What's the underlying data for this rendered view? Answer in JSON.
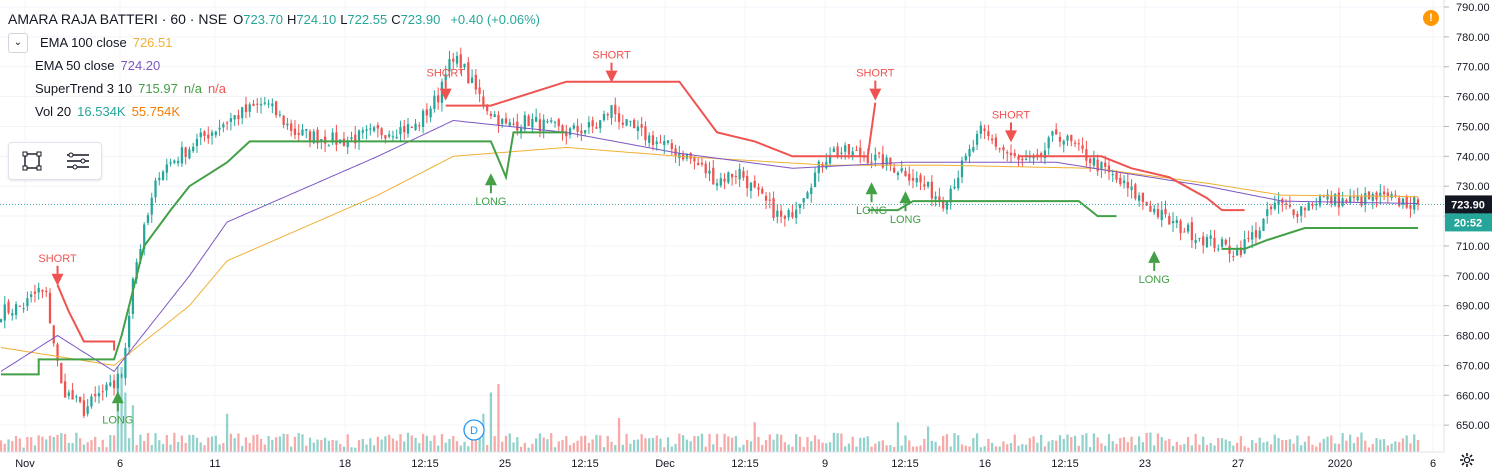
{
  "header": {
    "symbol": "AMARA RAJA BATTERI · 60 · NSE",
    "ohlc": [
      {
        "label": "O",
        "value": "723.70"
      },
      {
        "label": "H",
        "value": "724.10"
      },
      {
        "label": "L",
        "value": "722.55"
      },
      {
        "label": "C",
        "value": "723.90"
      }
    ],
    "change": "+0.40 (+0.06%)"
  },
  "indicators": [
    {
      "name": "EMA 100 close",
      "values": [
        "726.51"
      ],
      "colors": [
        "#f0b034"
      ]
    },
    {
      "name": "EMA 50 close",
      "values": [
        "724.20"
      ],
      "colors": [
        "#7e57c2"
      ]
    },
    {
      "name": "SuperTrend 3 10",
      "values": [
        "715.97",
        "n/a",
        "n/a"
      ],
      "colors": [
        "#43a047",
        "#43a047",
        "#ef5350"
      ]
    },
    {
      "name": "Vol 20",
      "values": [
        "16.534K",
        "55.754K"
      ],
      "colors": [
        "#26a69a",
        "#f57c00"
      ]
    }
  ],
  "colors": {
    "up": "#26a69a",
    "down": "#ef5350",
    "ema100": "#f0b034",
    "ema50": "#7e57c2",
    "st_long": "#43a047",
    "st_short": "#ef5350",
    "price_tag": "#131722",
    "time_tag": "#26a69a"
  },
  "price_tag": {
    "value": "723.90",
    "countdown": "20:52"
  },
  "event_marker": "D",
  "icons": {
    "alert": "exclamation-alert-icon",
    "settings": "gear-icon",
    "collapse": "chevron-down-icon"
  },
  "chart_data": {
    "type": "candlestick",
    "title": "AMARA RAJA BATTERI · 60 · NSE",
    "y_axis": {
      "min": 640,
      "max": 790,
      "ticks": [
        "650.00",
        "660.00",
        "670.00",
        "680.00",
        "690.00",
        "700.00",
        "710.00",
        "720.00",
        "730.00",
        "740.00",
        "750.00",
        "760.00",
        "770.00",
        "780.00",
        "790.00"
      ]
    },
    "x_axis": {
      "ticks": [
        "Nov",
        "6",
        "11",
        "18",
        "12:15",
        "25",
        "12:15",
        "Dec",
        "12:15",
        "9",
        "12:15",
        "16",
        "12:15",
        "23",
        "27",
        "2020",
        "6"
      ]
    },
    "price_key_points": {
      "x": [
        0,
        6,
        10,
        12,
        16,
        18,
        22,
        26,
        30,
        31,
        32,
        35,
        42,
        52,
        60,
        70,
        78,
        90,
        100,
        110,
        116,
        118,
        122,
        124,
        128,
        130,
        134,
        140,
        150,
        158,
        162,
        166,
        174,
        182,
        190,
        196,
        200,
        208,
        220,
        230,
        240,
        250,
        260,
        270,
        275,
        280,
        290,
        300,
        310,
        320,
        328,
        334,
        338,
        344,
        350,
        356,
        366,
        376
      ],
      "close": [
        688,
        690,
        695,
        693,
        663,
        660,
        655,
        660,
        663,
        668,
        665,
        700,
        735,
        745,
        752,
        758,
        748,
        745,
        748,
        750,
        760,
        770,
        772,
        766,
        758,
        755,
        750,
        752,
        748,
        750,
        756,
        750,
        745,
        740,
        732,
        735,
        728,
        718,
        742,
        740,
        735,
        725,
        748,
        738,
        738,
        748,
        738,
        728,
        718,
        712,
        708,
        716,
        724,
        722,
        726,
        725,
        726,
        723.9
      ]
    },
    "ema100": {
      "x": [
        0,
        30,
        50,
        60,
        100,
        120,
        150,
        180,
        220,
        250,
        290,
        320,
        340,
        376
      ],
      "y": [
        676,
        670,
        690,
        705,
        727,
        740,
        743,
        740,
        737,
        737,
        736,
        731,
        727,
        726.5
      ]
    },
    "ema50": {
      "x": [
        0,
        15,
        30,
        50,
        60,
        100,
        120,
        150,
        180,
        210,
        240,
        280,
        320,
        340,
        376
      ],
      "y": [
        668,
        680,
        668,
        700,
        718,
        740,
        752,
        748,
        741,
        736,
        738,
        738,
        730,
        725,
        724.2
      ]
    },
    "supertrend": [
      {
        "dir": "short",
        "x": [
          15,
          18,
          22,
          30,
          30
        ],
        "y": [
          697,
          688,
          678,
          678,
          675
        ]
      },
      {
        "dir": "long",
        "x": [
          0,
          10,
          10,
          30,
          32,
          35,
          38,
          45,
          50,
          55,
          60,
          66,
          80,
          90,
          98,
          118,
          130,
          132,
          134,
          136,
          144,
          150
        ],
        "y": [
          667,
          667,
          672,
          672,
          680,
          695,
          710,
          722,
          730,
          734,
          738,
          745,
          745,
          745,
          745,
          745,
          745,
          739,
          733,
          748,
          748,
          748
        ]
      },
      {
        "dir": "short",
        "x": [
          118,
          130,
          150,
          158,
          165,
          170,
          180,
          190,
          200,
          210,
          222,
          227,
          230,
          232
        ],
        "y": [
          757,
          757,
          765,
          765,
          765,
          765,
          765,
          748,
          745,
          740,
          740,
          740,
          740,
          758
        ]
      },
      {
        "dir": "long",
        "x": [
          230,
          232,
          238,
          242,
          250,
          260,
          276,
          286,
          291,
          296
        ],
        "y": [
          722,
          722,
          722,
          725,
          725,
          725,
          725,
          725,
          720,
          720
        ]
      },
      {
        "dir": "short",
        "x": [
          270,
          280,
          292,
          300,
          310,
          320,
          324,
          330
        ],
        "y": [
          740,
          740,
          740,
          736,
          733,
          726,
          722,
          722
        ]
      },
      {
        "dir": "long",
        "x": [
          324,
          330,
          336,
          346,
          360,
          376
        ],
        "y": [
          709,
          709,
          712,
          716,
          716,
          716
        ]
      }
    ],
    "signals": [
      {
        "type": "SHORT",
        "x": 15,
        "price": 698
      },
      {
        "type": "LONG",
        "x": 31,
        "price": 660
      },
      {
        "type": "SHORT",
        "x": 118,
        "price": 760
      },
      {
        "type": "LONG",
        "x": 130,
        "price": 733
      },
      {
        "type": "SHORT",
        "x": 162,
        "price": 766
      },
      {
        "type": "SHORT",
        "x": 232,
        "price": 760
      },
      {
        "type": "LONG",
        "x": 231,
        "price": 730
      },
      {
        "type": "LONG",
        "x": 240,
        "price": 727
      },
      {
        "type": "SHORT",
        "x": 268,
        "price": 746
      },
      {
        "type": "LONG",
        "x": 306,
        "price": 707
      }
    ],
    "volume_spikes": [
      {
        "x": 31,
        "rel": 0.85,
        "dir": "up"
      },
      {
        "x": 32,
        "rel": 1.0,
        "dir": "up"
      },
      {
        "x": 33,
        "rel": 0.7,
        "dir": "up"
      },
      {
        "x": 35,
        "rel": 0.55,
        "dir": "up"
      },
      {
        "x": 60,
        "rel": 0.45,
        "dir": "up"
      },
      {
        "x": 128,
        "rel": 0.45,
        "dir": "up"
      },
      {
        "x": 130,
        "rel": 0.7,
        "dir": "up"
      },
      {
        "x": 132,
        "rel": 0.8,
        "dir": "down"
      },
      {
        "x": 164,
        "rel": 0.4,
        "dir": "down"
      },
      {
        "x": 200,
        "rel": 0.35,
        "dir": "down"
      },
      {
        "x": 238,
        "rel": 0.35,
        "dir": "up"
      },
      {
        "x": 246,
        "rel": 0.3,
        "dir": "up"
      }
    ]
  }
}
